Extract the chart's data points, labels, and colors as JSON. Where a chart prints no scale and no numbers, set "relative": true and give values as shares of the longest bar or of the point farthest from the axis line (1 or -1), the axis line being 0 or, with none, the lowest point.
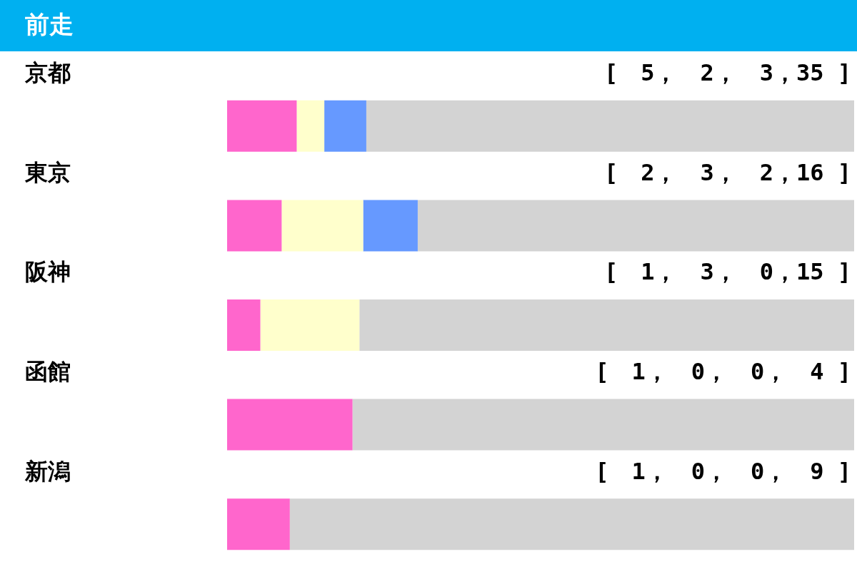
{
  "chart_data": {
    "type": "bar",
    "title": "前走",
    "orientation": "horizontal",
    "stacked": true,
    "relative": true,
    "categories": [
      "京都",
      "東京",
      "阪神",
      "函館",
      "新潟"
    ],
    "series": [
      {
        "color": "#ff66cc",
        "values": [
          0.111,
          0.087,
          0.053,
          0.2,
          0.1
        ]
      },
      {
        "color": "#ffffcc",
        "values": [
          0.044,
          0.13,
          0.158,
          0,
          0
        ]
      },
      {
        "color": "#6699ff",
        "values": [
          0.067,
          0.087,
          0,
          0,
          0
        ]
      },
      {
        "color": "#d3d3d3",
        "values": [
          0.778,
          0.696,
          0.789,
          0.8,
          0.9
        ]
      }
    ],
    "annotations": [
      "[　5，　2，　3，35 ]",
      "[　2，　3，　2，16 ]",
      "[　1，　3，　0，15 ]",
      "[　1，　0，　0，　4 ]",
      "[　1，　0，　0，　9 ]"
    ]
  }
}
